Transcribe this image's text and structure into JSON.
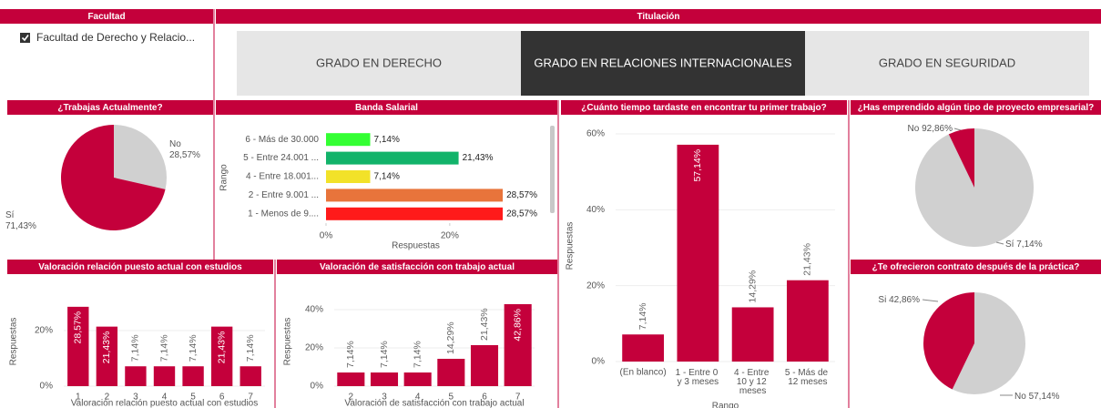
{
  "facultad": {
    "title": "Facultad",
    "items": [
      "Facultad de Derecho y Relacio..."
    ]
  },
  "titulacion": {
    "title": "Titulación",
    "options": [
      "GRADO EN DERECHO",
      "GRADO EN RELACIONES INTERNACIONALES",
      "GRADO EN SEGURIDAD"
    ],
    "selected_index": 1
  },
  "chart_data": [
    {
      "type": "pie",
      "title": "¿Trabajas Actualmente?",
      "categories": [
        "No",
        "Sí"
      ],
      "values": [
        28.57,
        71.43
      ],
      "value_labels": [
        "28,57%",
        "71,43%"
      ],
      "colors": [
        "#d0d0d0",
        "#c4003b"
      ]
    },
    {
      "type": "hbar",
      "title": "Banda Salarial",
      "categories": [
        "6 - Más de 30.000",
        "5 - Entre 24.001 ...",
        "4 - Entre 18.001...",
        "2 - Entre 9.001 ...",
        "1 - Menos de 9...."
      ],
      "values": [
        7.14,
        21.43,
        7.14,
        28.57,
        28.57
      ],
      "value_labels": [
        "7,14%",
        "21,43%",
        "7,14%",
        "28,57%",
        "28,57%"
      ],
      "colors": [
        "#33ff33",
        "#12b36a",
        "#f2e229",
        "#e8743b",
        "#ff1a1a"
      ],
      "xlim": [
        0,
        29
      ],
      "xticks": [
        {
          "value": 0,
          "label": "0%"
        },
        {
          "value": 20,
          "label": "20%"
        }
      ],
      "xlabel": "Respuestas",
      "ylabel": "Rango"
    },
    {
      "type": "bar",
      "title": "¿Cuánto tiempo tardaste en encontrar tu primer trabajo?",
      "categories": [
        "(En blanco)",
        "1 - Entre 0 y 3 meses",
        "4 - Entre 10 y 12 meses",
        "5 - Más de 12 meses"
      ],
      "values": [
        7.14,
        57.14,
        14.29,
        21.43
      ],
      "value_labels": [
        "7,14%",
        "57,14%",
        "14,29%",
        "21,43%"
      ],
      "color": "#c4003b",
      "ylim": [
        0,
        60
      ],
      "yticks": [
        {
          "value": 0,
          "label": "0%"
        },
        {
          "value": 20,
          "label": "20%"
        },
        {
          "value": 40,
          "label": "40%"
        },
        {
          "value": 60,
          "label": "60%"
        }
      ],
      "xlabel": "Rango",
      "ylabel": "Respuestas"
    },
    {
      "type": "pie",
      "title": "¿Has emprendido algún tipo de proyecto empresarial?",
      "categories": [
        "No",
        "Sí"
      ],
      "values": [
        92.86,
        7.14
      ],
      "value_labels": [
        "92,86%",
        "7,14%"
      ],
      "colors": [
        "#d0d0d0",
        "#c4003b"
      ]
    },
    {
      "type": "bar",
      "title": "Valoración relación puesto actual con estudios",
      "categories": [
        "1",
        "2",
        "3",
        "4",
        "5",
        "6",
        "7"
      ],
      "values": [
        28.57,
        21.43,
        7.14,
        7.14,
        7.14,
        21.43,
        7.14
      ],
      "value_labels": [
        "28,57%",
        "21,43%",
        "7,14%",
        "7,14%",
        "7,14%",
        "21,43%",
        "7,14%"
      ],
      "color": "#c4003b",
      "ylim": [
        0,
        30
      ],
      "yticks": [
        {
          "value": 0,
          "label": "0%"
        },
        {
          "value": 20,
          "label": "20%"
        }
      ],
      "xlabel": "Valoración relación puesto actual con estudios",
      "ylabel": "Respuestas"
    },
    {
      "type": "bar",
      "title": "Valoración de satisfacción con trabajo actual",
      "categories": [
        "2",
        "3",
        "4",
        "5",
        "6",
        "7"
      ],
      "values": [
        7.14,
        7.14,
        7.14,
        14.29,
        21.43,
        42.86
      ],
      "value_labels": [
        "7,14%",
        "7,14%",
        "7,14%",
        "14,29%",
        "21,43%",
        "42,86%"
      ],
      "color": "#c4003b",
      "ylim": [
        0,
        45
      ],
      "yticks": [
        {
          "value": 0,
          "label": "0%"
        },
        {
          "value": 20,
          "label": "20%"
        },
        {
          "value": 40,
          "label": "40%"
        }
      ],
      "xlabel": "Valoración de satisfacción con trabajo actual",
      "ylabel": "Respuestas"
    },
    {
      "type": "pie",
      "title": "¿Te ofrecieron contrato después de la práctica?",
      "categories": [
        "No",
        "Si"
      ],
      "values": [
        57.14,
        42.86
      ],
      "value_labels": [
        "57,14%",
        "42,86%"
      ],
      "colors": [
        "#d0d0d0",
        "#c4003b"
      ]
    }
  ]
}
